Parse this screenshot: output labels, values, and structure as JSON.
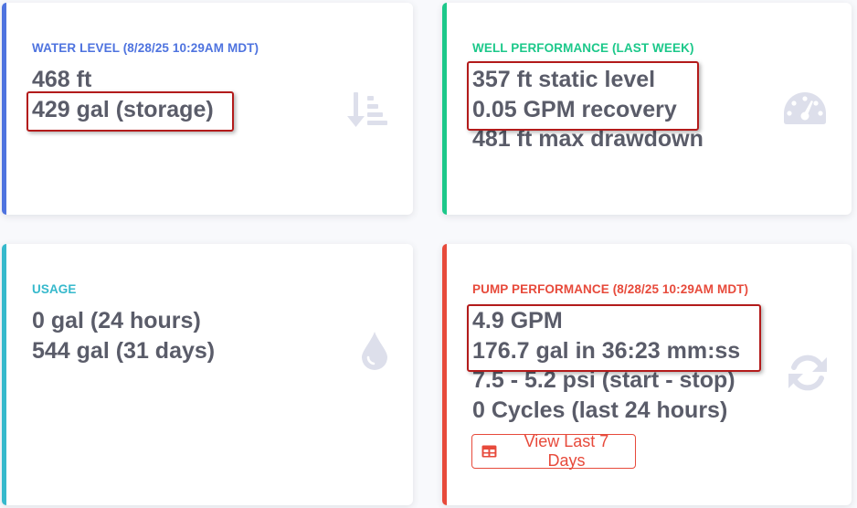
{
  "water_level": {
    "title": "WATER LEVEL (8/28/25 10:29AM MDT)",
    "lines": [
      "468 ft",
      "429 gal (storage)"
    ],
    "icon": "sort-amount-down-icon"
  },
  "well_performance": {
    "title": "WELL PERFORMANCE (LAST WEEK)",
    "lines": [
      "357 ft static level",
      "0.05 GPM recovery",
      "481 ft max drawdown"
    ],
    "icon": "tachometer-icon"
  },
  "usage": {
    "title": "USAGE",
    "lines": [
      "0 gal (24 hours)",
      "544 gal (31 days)"
    ],
    "icon": "water-drop-icon"
  },
  "pump_performance": {
    "title": "PUMP PERFORMANCE (8/28/25 10:29AM MDT)",
    "lines": [
      "4.9 GPM",
      "176.7 gal in 36:23 mm:ss",
      "7.5 - 5.2 psi (start - stop)",
      "0 Cycles (last 24 hours)"
    ],
    "button_label": "View Last 7 Days",
    "button_icon": "table-icon",
    "icon": "sync-icon"
  },
  "colors": {
    "primary": "#4e73df",
    "success": "#1cc88a",
    "info": "#36b9cc",
    "danger": "#e74a3b",
    "text": "#5a5c69",
    "annotation": "#b31b1b"
  }
}
